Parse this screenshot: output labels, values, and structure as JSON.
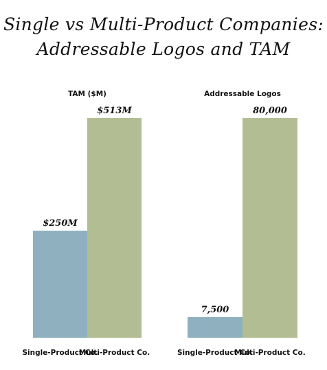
{
  "title": {
    "line1": "Single vs Multi-Product Companies:",
    "line2": "Addressable Logos and TAM"
  },
  "colors": {
    "single": "#8fb1bf",
    "multi": "#b3bd93"
  },
  "chart_data": [
    {
      "type": "bar",
      "title": "TAM ($M)",
      "categories": [
        "Single-Product Co.",
        "Multi-Product Co."
      ],
      "values": [
        250,
        513
      ],
      "data_labels": [
        "$250M",
        "$513M"
      ],
      "ylim": [
        0,
        513
      ],
      "grid": false
    },
    {
      "type": "bar",
      "title": "Addressable Logos",
      "categories": [
        "Single-Product Co.",
        "Multi-Product Co."
      ],
      "values": [
        7500,
        80000
      ],
      "data_labels": [
        "7,500",
        "80,000"
      ],
      "ylim": [
        0,
        80000
      ],
      "grid": false
    }
  ]
}
